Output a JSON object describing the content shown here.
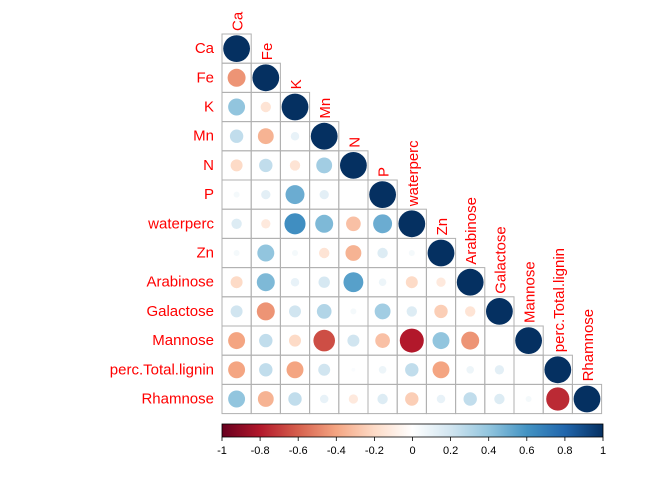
{
  "chart_data": {
    "type": "heatmap",
    "subtype": "correlation-circle-lower-triangle",
    "variables": [
      "Ca",
      "Fe",
      "K",
      "Mn",
      "N",
      "P",
      "waterperc",
      "Zn",
      "Arabinose",
      "Galactose",
      "Mannose",
      "perc.Total.lignin",
      "Rhamnose"
    ],
    "matrix": [
      [
        1.0,
        null,
        null,
        null,
        null,
        null,
        null,
        null,
        null,
        null,
        null,
        null,
        null
      ],
      [
        -0.45,
        1.0,
        null,
        null,
        null,
        null,
        null,
        null,
        null,
        null,
        null,
        null,
        null
      ],
      [
        0.4,
        -0.15,
        1.0,
        null,
        null,
        null,
        null,
        null,
        null,
        null,
        null,
        null,
        null
      ],
      [
        0.25,
        -0.35,
        0.1,
        1.0,
        null,
        null,
        null,
        null,
        null,
        null,
        null,
        null,
        null
      ],
      [
        -0.2,
        0.25,
        -0.15,
        0.35,
        1.0,
        null,
        null,
        null,
        null,
        null,
        null,
        null,
        null
      ],
      [
        0.05,
        0.12,
        0.5,
        0.12,
        0.0,
        1.0,
        null,
        null,
        null,
        null,
        null,
        null,
        null
      ],
      [
        0.15,
        -0.12,
        0.62,
        0.45,
        -0.3,
        0.5,
        1.0,
        null,
        null,
        null,
        null,
        null,
        null
      ],
      [
        0.05,
        0.4,
        0.05,
        -0.15,
        -0.35,
        0.15,
        0.05,
        1.0,
        null,
        null,
        null,
        null,
        null
      ],
      [
        -0.2,
        0.45,
        0.1,
        0.18,
        0.55,
        0.08,
        -0.2,
        -0.12,
        1.0,
        null,
        null,
        null,
        null
      ],
      [
        0.2,
        -0.45,
        0.2,
        0.3,
        0.05,
        0.35,
        0.15,
        -0.25,
        -0.15,
        1.0,
        null,
        null,
        null
      ],
      [
        -0.4,
        0.25,
        -0.2,
        -0.65,
        0.2,
        -0.3,
        -0.8,
        0.4,
        -0.45,
        0.0,
        1.0,
        null,
        null
      ],
      [
        -0.4,
        0.25,
        -0.4,
        0.2,
        0.02,
        0.08,
        0.25,
        -0.4,
        0.08,
        0.12,
        0.0,
        1.0,
        null
      ],
      [
        0.4,
        -0.35,
        0.25,
        0.1,
        -0.12,
        0.15,
        -0.25,
        0.1,
        0.25,
        0.15,
        0.05,
        -0.75,
        1.0
      ]
    ],
    "legend": {
      "ticks": [
        "-1",
        "-0.8",
        "-0.6",
        "-0.4",
        "-0.2",
        "0",
        "0.2",
        "0.4",
        "0.6",
        "0.8",
        "1"
      ],
      "range": [
        -1,
        1
      ]
    },
    "colors": {
      "label": "#ff0000",
      "grid": "#b0b0b0",
      "scale": [
        "#67001f",
        "#b2182b",
        "#d6604d",
        "#f4a582",
        "#fddbc7",
        "#ffffff",
        "#d1e5f0",
        "#92c5de",
        "#4393c3",
        "#2166ac",
        "#053061"
      ]
    }
  }
}
